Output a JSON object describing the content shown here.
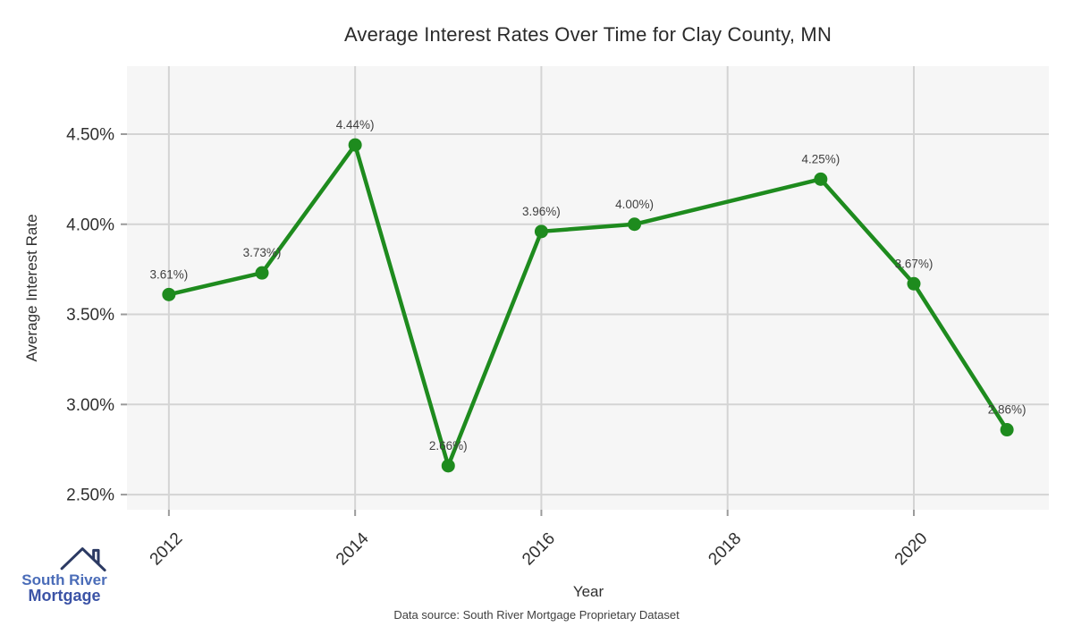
{
  "figure": {
    "caption": "Data source: South River Mortgage Proprietary Dataset"
  },
  "logo": {
    "icon": "house-roof-icon",
    "line1": "South River",
    "line2": "Mortgage",
    "roof_color": "#2c3a63",
    "line1_color": "#4a6cb8",
    "line2_color": "#3b53a6"
  },
  "chart_data": {
    "type": "line",
    "title": "Average Interest Rates Over Time for Clay County, MN",
    "xlabel": "Year",
    "ylabel": "Average Interest Rate",
    "x": [
      2012,
      2013,
      2014,
      2015,
      2016,
      2017,
      2019,
      2020,
      2021
    ],
    "values": [
      3.61,
      3.73,
      4.44,
      2.66,
      3.96,
      4.0,
      4.25,
      3.67,
      2.86
    ],
    "point_labels": [
      "3.61%)",
      "3.73%)",
      "4.44%)",
      "2.66%)",
      "3.96%)",
      "4.00%)",
      "4.25%)",
      "3.67%)",
      "2.86%)"
    ],
    "x_tick_values": [
      2012,
      2014,
      2016,
      2018,
      2020
    ],
    "x_tick_labels": [
      "2012",
      "2014",
      "2016",
      "2018",
      "2020"
    ],
    "y_tick_values": [
      2.5,
      3.0,
      3.5,
      4.0,
      4.5
    ],
    "y_tick_labels": [
      "2.50%",
      "3.00%",
      "3.50%",
      "4.00%",
      "4.50%"
    ],
    "xlim": [
      2011.55,
      2021.45
    ],
    "ylim": [
      2.416,
      4.877
    ],
    "grid": true,
    "legend": "none",
    "line_color": "#1e8b1e",
    "marker_color": "#1e8b1e",
    "panel_bg": "#f6f6f6",
    "grid_color": "#d4d4d4",
    "tick_color": "#9b9b9b",
    "tick_label_color": "#2f2f2f",
    "point_label_color": "#404040"
  }
}
